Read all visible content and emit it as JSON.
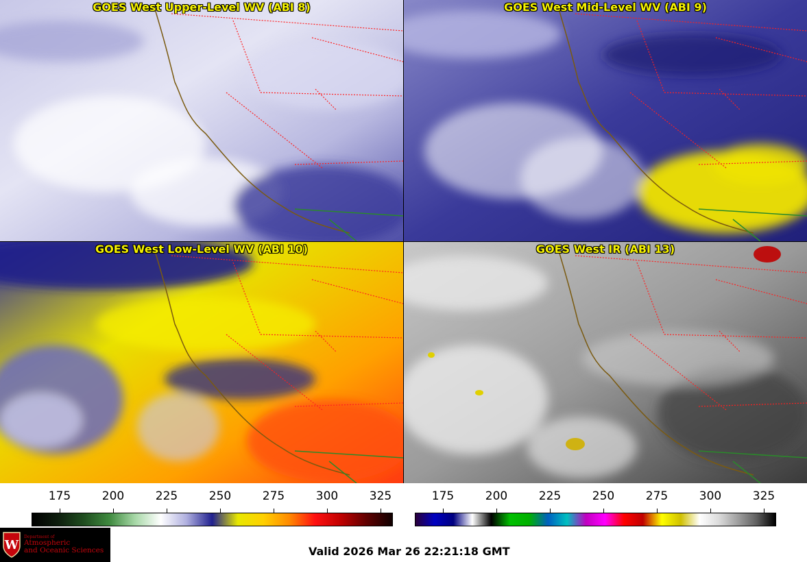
{
  "panels": [
    {
      "title": "GOES West Upper-Level WV (ABI 8)"
    },
    {
      "title": "GOES West Mid-Level WV (ABI 9)"
    },
    {
      "title": "GOES West Low-Level WV (ABI 10)"
    },
    {
      "title": "GOES West IR (ABI 13)"
    }
  ],
  "colorbars": {
    "wv": {
      "ticks": [
        "175",
        "200",
        "225",
        "250",
        "275",
        "300",
        "325"
      ],
      "stops": [
        "#000000",
        "#0d1d0d",
        "#1f4d1f",
        "#3f8a3f",
        "#a7d8a7",
        "#ffffff",
        "#b0b0df",
        "#20208f",
        "#e8e800",
        "#ffd000",
        "#ff8a00",
        "#ff1010",
        "#c00000",
        "#600000",
        "#100000"
      ]
    },
    "ir": {
      "ticks": [
        "175",
        "200",
        "225",
        "250",
        "275",
        "300",
        "325"
      ],
      "stops": [
        "#2a003a",
        "#0000c0",
        "#000080",
        "#ffffff",
        "#000000",
        "#00c000",
        "#00b000",
        "#0060c0",
        "#00c0c0",
        "#c000c0",
        "#ff00ff",
        "#ff0000",
        "#c00000",
        "#ffff00",
        "#d0c000",
        "#ffffff",
        "#dcdcdc",
        "#a0a0a0",
        "#606060",
        "#000000"
      ]
    }
  },
  "footer": {
    "valid_text": "Valid 2026 Mar 26 22:21:18 GMT",
    "logo_dept": "Department of",
    "logo_line1": "Atmospheric",
    "logo_line2": "and Oceanic Sciences"
  },
  "colors": {
    "title": "#f6f200",
    "state_border": "#ff2020",
    "coastline": "#7a5a10"
  }
}
